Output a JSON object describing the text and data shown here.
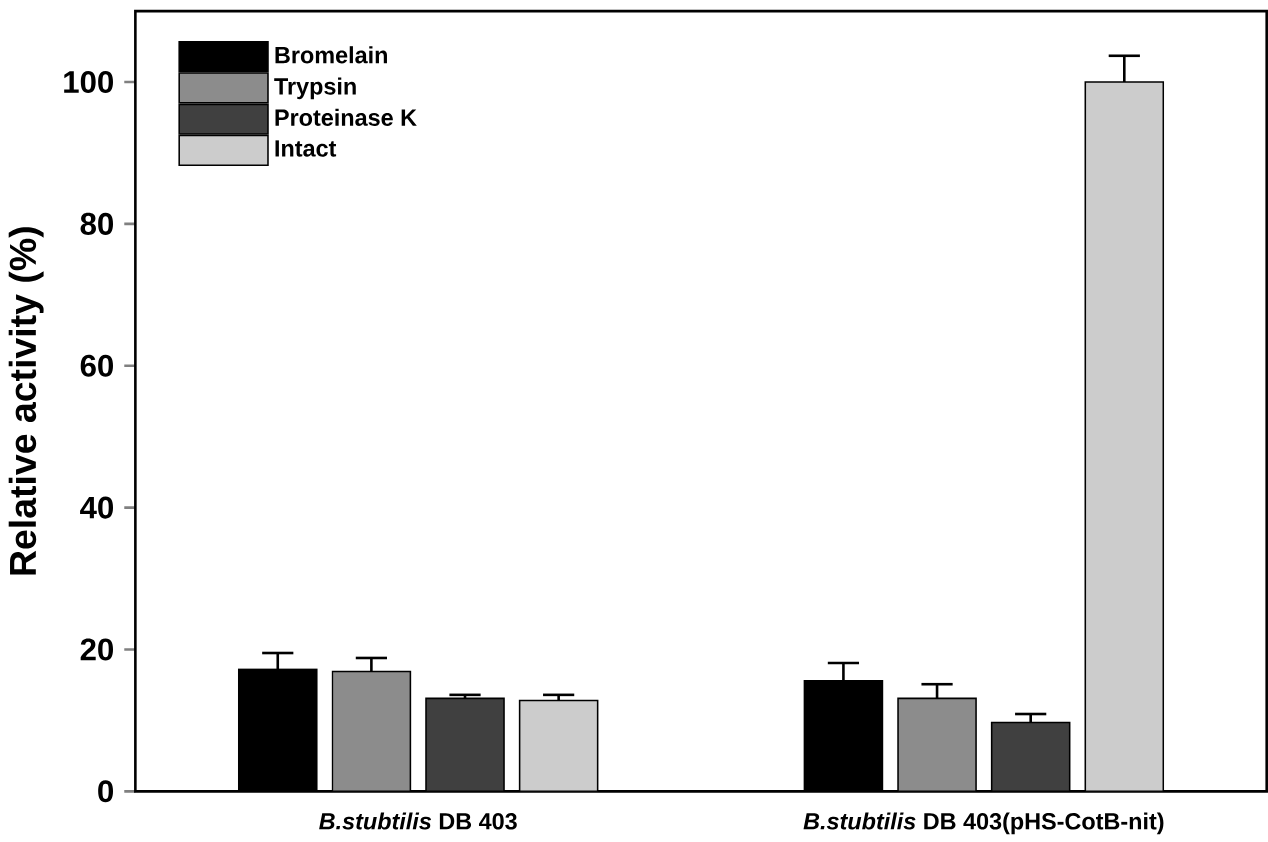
{
  "chart_data": {
    "type": "bar",
    "ylabel": "Relative activity (%)",
    "categories": [
      "*B.stubtilis* DB 403",
      "*B.stubtilis* DB 403(pHS-CotB-nit)"
    ],
    "series": [
      {
        "name": "Bromelain",
        "color": "#000000",
        "values": [
          17.2,
          15.6
        ],
        "errors": [
          2.3,
          2.5
        ]
      },
      {
        "name": "Trypsin",
        "color": "#8c8c8c",
        "values": [
          16.9,
          13.1
        ],
        "errors": [
          1.9,
          2.0
        ]
      },
      {
        "name": "Proteinase K",
        "color": "#404040",
        "values": [
          13.1,
          9.7
        ],
        "errors": [
          0.5,
          1.2
        ]
      },
      {
        "name": "Intact",
        "color": "#cccccc",
        "values": [
          12.8,
          100
        ],
        "errors": [
          0.8,
          3.7
        ]
      }
    ],
    "ylim": [
      0,
      110
    ],
    "yticks": [
      0,
      20,
      40,
      60,
      80,
      100
    ],
    "legend": "top left",
    "grid": false
  }
}
